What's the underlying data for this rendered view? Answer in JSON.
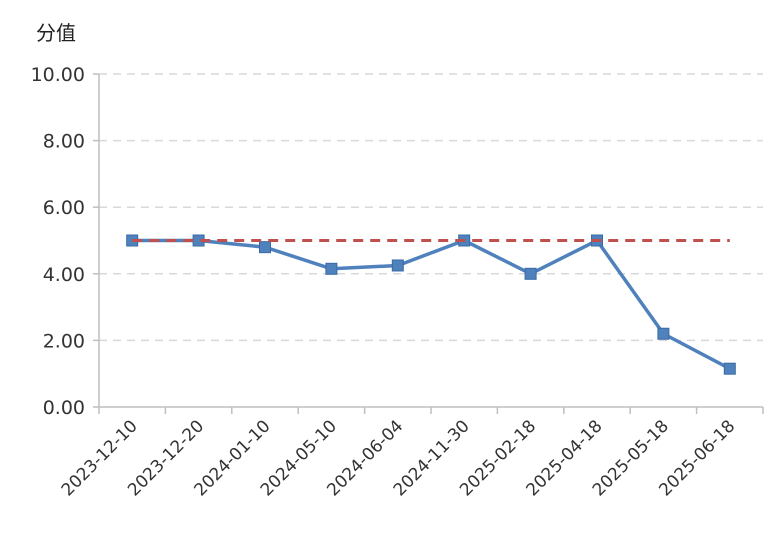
{
  "chart_data": {
    "type": "line",
    "ylabel": "分值",
    "ylim": [
      0,
      10
    ],
    "yticks": [
      "0.00",
      "2.00",
      "4.00",
      "6.00",
      "8.00",
      "10.00"
    ],
    "categories": [
      "2023-12-10",
      "2023-12-20",
      "2024-01-10",
      "2024-05-10",
      "2024-06-04",
      "2024-11-30",
      "2025-02-18",
      "2025-04-18",
      "2025-05-18",
      "2025-06-18"
    ],
    "series": [
      {
        "values": [
          5.0,
          5.0,
          4.8,
          4.15,
          4.25,
          5.0,
          4.0,
          5.0,
          2.2,
          1.15
        ],
        "color": "#4f81bd",
        "marker": "square",
        "style": "solid"
      },
      {
        "values": [
          5.0,
          5.0,
          5.0,
          5.0,
          5.0,
          5.0,
          5.0,
          5.0,
          5.0,
          5.0
        ],
        "color": "#c0504d",
        "marker": "none",
        "style": "dashed"
      }
    ],
    "grid": true
  }
}
